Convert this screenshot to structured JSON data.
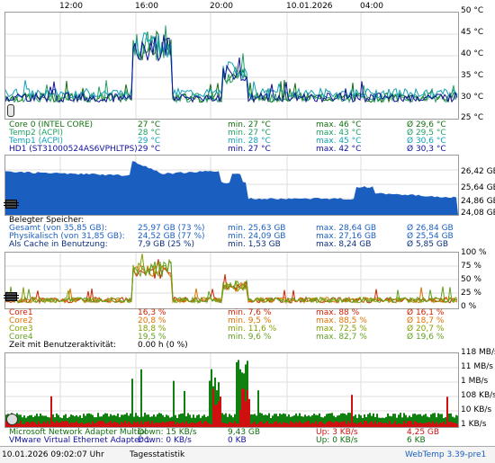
{
  "time_axis": {
    "labels": [
      "12:00",
      "16:00",
      "20:00",
      "10.01.2026",
      "04:00"
    ]
  },
  "temp": {
    "yaxis": [
      "50 °C",
      "45 °C",
      "40 °C",
      "35 °C",
      "30 °C",
      "25 °C"
    ],
    "sensors": [
      {
        "name": "Core 0 (INTEL CORE)",
        "cur": "27 °C",
        "min": "min. 27 °C",
        "max": "max. 46 °C",
        "avg": "Ø 29,6 °C",
        "color": "#107010"
      },
      {
        "name": "Temp2 (ACPI)",
        "cur": "28 °C",
        "min": "min. 27 °C",
        "max": "max. 43 °C",
        "avg": "Ø 29,5 °C",
        "color": "#20a060"
      },
      {
        "name": "Temp1 (ACPI)",
        "cur": "29 °C",
        "min": "min. 28 °C",
        "max": "max. 45 °C",
        "avg": "Ø 30,6 °C",
        "color": "#10a0b8"
      },
      {
        "name": "HD1 (ST31000524AS6VPHLTPS)",
        "cur": "29 °C",
        "min": "min. 27 °C",
        "max": "max. 42 °C",
        "avg": "Ø 30,3 °C",
        "color": "#1010a0"
      }
    ]
  },
  "memory": {
    "yaxis": [
      "26,42 GB",
      "25,64 GB",
      "24,86 GB",
      "24,08 GB"
    ],
    "title": "Belegter Speicher:",
    "rows": [
      {
        "name": "Gesamt (von 35,85 GB):",
        "cur": "25,97 GB (73 %)",
        "min": "min. 25,63 GB",
        "max": "max. 28,64 GB",
        "avg": "Ø 26,84 GB",
        "color": "#1a5fc0"
      },
      {
        "name": "Physikalisch (von 31,85 GB):",
        "cur": "24,52 GB (77 %)",
        "min": "min. 24,09 GB",
        "max": "max. 27,16 GB",
        "avg": "Ø 25,54 GB",
        "color": "#1a5fc0"
      },
      {
        "name": "Als Cache in Benutzung:",
        "cur": "7,9 GB (25 %)",
        "min": "min. 1,53 GB",
        "max": "max. 8,24 GB",
        "avg": "Ø 5,85 GB",
        "color": "#0a2f80"
      }
    ]
  },
  "cpu": {
    "yaxis": [
      "100 %",
      "75 %",
      "50 %",
      "25 %",
      "0 %"
    ],
    "cores": [
      {
        "name": "Core1",
        "cur": "16,3 %",
        "min": "min. 7,6 %",
        "max": "max. 88 %",
        "avg": "Ø 16,1 %",
        "color": "#d02000"
      },
      {
        "name": "Core2",
        "cur": "20,8 %",
        "min": "min. 9,5 %",
        "max": "max. 88,5 %",
        "avg": "Ø 18,7 %",
        "color": "#e07000"
      },
      {
        "name": "Core3",
        "cur": "18,8 %",
        "min": "min. 11,6 %",
        "max": "max. 72,5 %",
        "avg": "Ø 20,7 %",
        "color": "#80a000"
      },
      {
        "name": "Core4",
        "cur": "19,5 %",
        "min": "min. 9,6 %",
        "max": "max. 82,7 %",
        "avg": "Ø 19,6 %",
        "color": "#60a020"
      }
    ],
    "activity_label": "Zeit mit Benutzeraktivität:",
    "activity_value": "0.00 h (0 %)"
  },
  "network": {
    "yaxis": [
      "118 MB/s",
      "11 MB/s",
      "1 MB/s",
      "108 KB/s",
      "10 KB/s",
      "1 KB/s"
    ],
    "adapters": [
      {
        "name": "Microsoft Network Adapter Multipl",
        "down": "Down: 15 KB/s",
        "down_total": "9,43 GB",
        "up": "Up: 3 KB/s",
        "up_total": "4,25 GB",
        "color": "#107010"
      },
      {
        "name": "VMware Virtual Ethernet Adapter 1",
        "down": "Down: 0 KB/s",
        "down_total": "0 KB",
        "up": "Up: 0 KB/s",
        "up_total": "6 KB",
        "color": "#1010a0"
      }
    ]
  },
  "status": {
    "datetime": "10.01.2026 09:02:07 Uhr",
    "tab": "Tagesstatistik",
    "version": "WebTemp 3.39-pre1"
  },
  "colors": {
    "grid": "#dcdcdc",
    "border": "#9a9a9a",
    "mem_fill": "#1a5fc0",
    "net_down": "#108010",
    "net_up": "#d01010"
  }
}
